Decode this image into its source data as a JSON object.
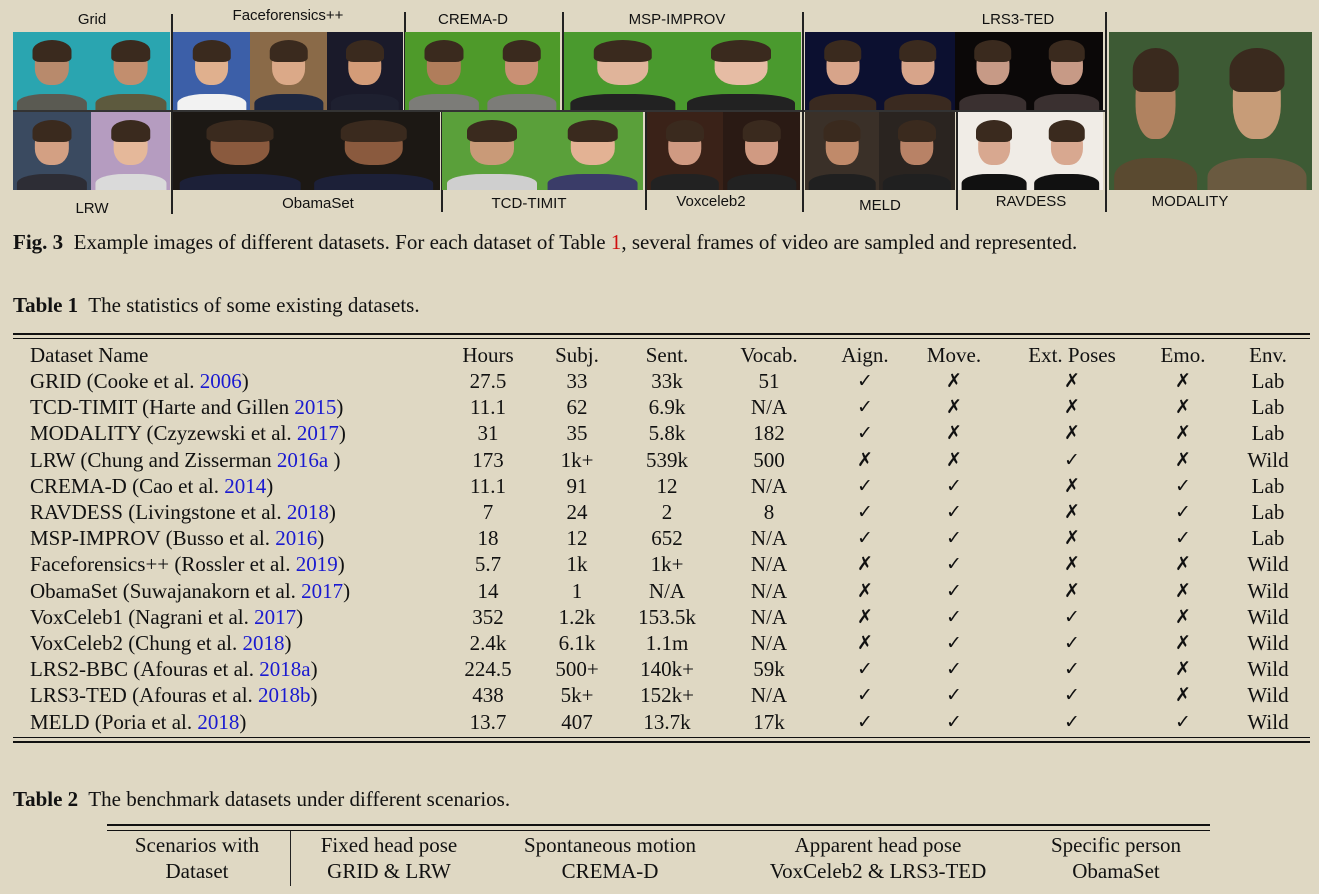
{
  "figure": {
    "labels": [
      "Grid",
      "Faceforensics++",
      "CREMA-D",
      "MSP-IMPROV",
      "LRS3-TED",
      "LRW",
      "ObamaSet",
      "TCD-TIMIT",
      "Voxceleb2",
      "MELD",
      "RAVDESS",
      "MODALITY"
    ],
    "caption_label": "Fig. 3",
    "caption_pre": "Example images of different datasets. For each dataset of Table ",
    "caption_ref": "1",
    "caption_post": ", several frames of video are sampled and represented."
  },
  "table1": {
    "caption_label": "Table 1",
    "caption_text": "The statistics of some existing datasets.",
    "headers": [
      "Dataset Name",
      "Hours",
      "Subj.",
      "Sent.",
      "Vocab.",
      "Aign.",
      "Move.",
      "Ext. Poses",
      "Emo.",
      "Env."
    ],
    "rows": [
      {
        "pre": "GRID (Cooke et al. ",
        "year": "2006",
        "post": ")",
        "cells": [
          "27.5",
          "33",
          "33k",
          "51",
          "✓",
          "✗",
          "✗",
          "✗",
          "Lab"
        ]
      },
      {
        "pre": "TCD-TIMIT (Harte and Gillen ",
        "year": "2015",
        "post": ")",
        "cells": [
          "11.1",
          "62",
          "6.9k",
          "N/A",
          "✓",
          "✗",
          "✗",
          "✗",
          "Lab"
        ]
      },
      {
        "pre": "MODALITY (Czyzewski et al. ",
        "year": "2017",
        "post": ")",
        "cells": [
          "31",
          "35",
          "5.8k",
          "182",
          "✓",
          "✗",
          "✗",
          "✗",
          "Lab"
        ]
      },
      {
        "pre": "LRW (Chung and Zisserman ",
        "year": "2016a",
        "post": " )",
        "cells": [
          "173",
          "1k+",
          "539k",
          "500",
          "✗",
          "✗",
          "✓",
          "✗",
          "Wild"
        ]
      },
      {
        "pre": "CREMA-D (Cao et al. ",
        "year": "2014",
        "post": ")",
        "cells": [
          "11.1",
          "91",
          "12",
          "N/A",
          "✓",
          "✓",
          "✗",
          "✓",
          "Lab"
        ]
      },
      {
        "pre": "RAVDESS (Livingstone et al. ",
        "year": "2018",
        "post": ")",
        "cells": [
          "7",
          "24",
          "2",
          "8",
          "✓",
          "✓",
          "✗",
          "✓",
          "Lab"
        ]
      },
      {
        "pre": "MSP-IMPROV (Busso et al. ",
        "year": "2016",
        "post": ")",
        "cells": [
          "18",
          "12",
          "652",
          "N/A",
          "✓",
          "✓",
          "✗",
          "✓",
          "Lab"
        ]
      },
      {
        "pre": "Faceforensics++ (Rossler et al. ",
        "year": "2019",
        "post": ")",
        "cells": [
          "5.7",
          "1k",
          "1k+",
          "N/A",
          "✗",
          "✓",
          "✗",
          "✗",
          "Wild"
        ]
      },
      {
        "pre": "ObamaSet (Suwajanakorn et al. ",
        "year": "2017",
        "post": ")",
        "cells": [
          "14",
          "1",
          "N/A",
          "N/A",
          "✗",
          "✓",
          "✗",
          "✗",
          "Wild"
        ]
      },
      {
        "pre": "VoxCeleb1 (Nagrani et al. ",
        "year": "2017",
        "post": ")",
        "cells": [
          "352",
          "1.2k",
          "153.5k",
          "N/A",
          "✗",
          "✓",
          "✓",
          "✗",
          "Wild"
        ]
      },
      {
        "pre": "VoxCeleb2 (Chung et al. ",
        "year": "2018",
        "post": ")",
        "cells": [
          "2.4k",
          "6.1k",
          "1.1m",
          "N/A",
          "✗",
          "✓",
          "✓",
          "✗",
          "Wild"
        ]
      },
      {
        "pre": "LRS2-BBC (Afouras et al. ",
        "year": "2018a",
        "post": ")",
        "cells": [
          "224.5",
          "500+",
          "140k+",
          "59k",
          "✓",
          "✓",
          "✓",
          "✗",
          "Wild"
        ]
      },
      {
        "pre": "LRS3-TED (Afouras et al. ",
        "year": "2018b",
        "post": ")",
        "cells": [
          "438",
          "5k+",
          "152k+",
          "N/A",
          "✓",
          "✓",
          "✓",
          "✗",
          "Wild"
        ]
      },
      {
        "pre": "MELD (Poria et al. ",
        "year": "2018",
        "post": ")",
        "cells": [
          "13.7",
          "407",
          "13.7k",
          "17k",
          "✓",
          "✓",
          "✓",
          "✓",
          "Wild"
        ]
      }
    ]
  },
  "table2": {
    "caption_label": "Table 2",
    "caption_text": "The benchmark datasets under different scenarios.",
    "row1": [
      "Scenarios with",
      "Fixed head pose",
      "Spontaneous motion",
      "Apparent head pose",
      "Specific person"
    ],
    "row2": [
      "Dataset",
      "GRID & LRW",
      "CREMA-D",
      "VoxCeleb2 & LRS3-TED",
      "ObamaSet"
    ]
  }
}
